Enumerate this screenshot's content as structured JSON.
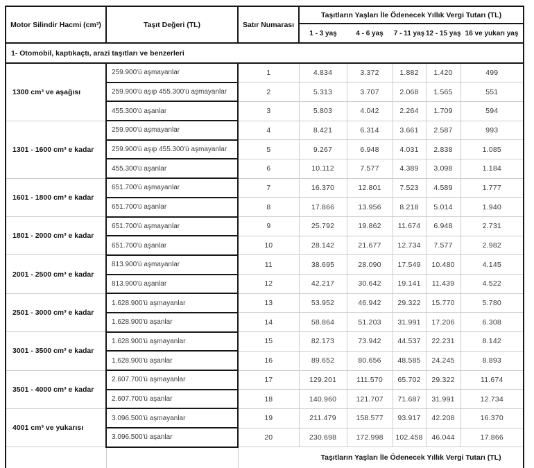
{
  "colors": {
    "border_black": "#161616",
    "border_gray": "#cccccc",
    "text_dark": "#141414",
    "text_gray": "#3a3a3a",
    "background": "#ffffff"
  },
  "table": {
    "header": {
      "col_engine": "Motor Silindir Hacmi (cm³)",
      "col_value": "Taşıt Değeri (TL)",
      "col_row_number": "Satır Numarası",
      "tax_group": "Taşıtların Yaşları İle Ödenecek Yıllık Vergi Tutarı (TL)",
      "age_columns": [
        "1 - 3 yaş",
        "4 - 6 yaş",
        "7 - 11 yaş",
        "12 - 15 yaş",
        "16 ve yukarı yaş"
      ]
    },
    "section_title": "1- Otomobil, kaptıkaçtı, arazi taşıtları ve benzerleri",
    "groups": [
      {
        "engine": "1300 cm³ ve aşağısı",
        "rows": [
          {
            "value_range": "259.900'ü aşmayanlar",
            "row_no": "1",
            "taxes": [
              "4.834",
              "3.372",
              "1.882",
              "1.420",
              "499"
            ]
          },
          {
            "value_range": "259.900'ü aşıp 455.300'ü aşmayanlar",
            "row_no": "2",
            "taxes": [
              "5.313",
              "3.707",
              "2.068",
              "1.565",
              "551"
            ]
          },
          {
            "value_range": "455.300'ü aşanlar",
            "row_no": "3",
            "taxes": [
              "5.803",
              "4.042",
              "2.264",
              "1.709",
              "594"
            ]
          }
        ]
      },
      {
        "engine": "1301 - 1600 cm³ e kadar",
        "rows": [
          {
            "value_range": "259.900'ü aşmayanlar",
            "row_no": "4",
            "taxes": [
              "8.421",
              "6.314",
              "3.661",
              "2.587",
              "993"
            ]
          },
          {
            "value_range": "259.900'ü aşıp 455.300'ü aşmayanlar",
            "row_no": "5",
            "taxes": [
              "9.267",
              "6.948",
              "4.031",
              "2.838",
              "1.085"
            ]
          },
          {
            "value_range": "455.300'ü aşanlar",
            "row_no": "6",
            "taxes": [
              "10.112",
              "7.577",
              "4.389",
              "3.098",
              "1.184"
            ]
          }
        ]
      },
      {
        "engine": "1601 - 1800 cm³ e kadar",
        "rows": [
          {
            "value_range": "651.700'ü aşmayanlar",
            "row_no": "7",
            "taxes": [
              "16.370",
              "12.801",
              "7.523",
              "4.589",
              "1.777"
            ]
          },
          {
            "value_range": "651.700'ü aşanlar",
            "row_no": "8",
            "taxes": [
              "17.866",
              "13.956",
              "8.218",
              "5.014",
              "1.940"
            ]
          }
        ]
      },
      {
        "engine": "1801 - 2000 cm³ e kadar",
        "rows": [
          {
            "value_range": "651.700'ü aşmayanlar",
            "row_no": "9",
            "taxes": [
              "25.792",
              "19.862",
              "11.674",
              "6.948",
              "2.731"
            ]
          },
          {
            "value_range": "651.700'ü aşanlar",
            "row_no": "10",
            "taxes": [
              "28.142",
              "21.677",
              "12.734",
              "7.577",
              "2.982"
            ]
          }
        ]
      },
      {
        "engine": "2001 - 2500 cm³ e kadar",
        "rows": [
          {
            "value_range": "813.900'ü aşmayanlar",
            "row_no": "11",
            "taxes": [
              "38.695",
              "28.090",
              "17.549",
              "10.480",
              "4.145"
            ]
          },
          {
            "value_range": "813.900'ü aşanlar",
            "row_no": "12",
            "taxes": [
              "42.217",
              "30.642",
              "19.141",
              "11.439",
              "4.522"
            ]
          }
        ]
      },
      {
        "engine": "2501 - 3000 cm³ e kadar",
        "rows": [
          {
            "value_range": "1.628.900'ü aşmayanlar",
            "row_no": "13",
            "taxes": [
              "53.952",
              "46.942",
              "29.322",
              "15.770",
              "5.780"
            ]
          },
          {
            "value_range": "1.628.900'ü aşanlar",
            "row_no": "14",
            "taxes": [
              "58.864",
              "51.203",
              "31.991",
              "17.206",
              "6.308"
            ]
          }
        ]
      },
      {
        "engine": "3001 - 3500 cm³ e kadar",
        "rows": [
          {
            "value_range": "1.628.900'ü aşmayanlar",
            "row_no": "15",
            "taxes": [
              "82.173",
              "73.942",
              "44.537",
              "22.231",
              "8.142"
            ]
          },
          {
            "value_range": "1.628.900'ü aşanlar",
            "row_no": "16",
            "taxes": [
              "89.652",
              "80.656",
              "48.585",
              "24.245",
              "8.893"
            ]
          }
        ]
      },
      {
        "engine": "3501 - 4000 cm³ e kadar",
        "rows": [
          {
            "value_range": "2.607.700'ü aşmayanlar",
            "row_no": "17",
            "taxes": [
              "129.201",
              "111.570",
              "65.702",
              "29.322",
              "11.674"
            ]
          },
          {
            "value_range": "2.607.700'ü aşanlar",
            "row_no": "18",
            "taxes": [
              "140.960",
              "121.707",
              "71.687",
              "31.991",
              "12.734"
            ]
          }
        ]
      },
      {
        "engine": "4001 cm³ ve yukarısı",
        "rows": [
          {
            "value_range": "3.096.500'ü aşmayanlar",
            "row_no": "19",
            "taxes": [
              "211.479",
              "158.577",
              "93.917",
              "42.208",
              "16.370"
            ]
          },
          {
            "value_range": "3.096.500'ü aşanlar",
            "row_no": "20",
            "taxes": [
              "230.698",
              "172.998",
              "102.458",
              "46.044",
              "17.866"
            ]
          }
        ]
      }
    ],
    "footer": "Taşıtların Yaşları İle Ödenecek Yıllık Vergi Tutarı (TL)"
  }
}
